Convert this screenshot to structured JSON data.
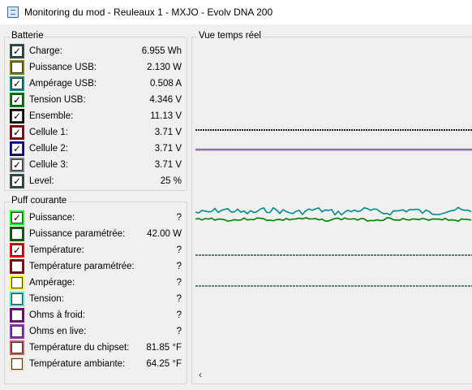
{
  "window": {
    "title": "Monitoring du mod - Reuleaux 1 - MXJO - Evolv DNA 200"
  },
  "batterie": {
    "label": "Batterie",
    "rows": [
      {
        "label": "Charge:",
        "value": "6.955 Wh",
        "checked": true,
        "color": "#2f4f4f"
      },
      {
        "label": "Puissance USB:",
        "value": "2.130 W",
        "checked": false,
        "color": "#808000"
      },
      {
        "label": "Ampérage USB:",
        "value": "0.508 A",
        "checked": true,
        "color": "#008b8b"
      },
      {
        "label": "Tension USB:",
        "value": "4.346 V",
        "checked": true,
        "color": "#008000"
      },
      {
        "label": "Ensemble:",
        "value": "11.13 V",
        "checked": true,
        "color": "#000000"
      },
      {
        "label": "Cellule 1:",
        "value": "3.71 V",
        "checked": true,
        "color": "#8b0000"
      },
      {
        "label": "Cellule 2:",
        "value": "3.71 V",
        "checked": true,
        "color": "#00008b"
      },
      {
        "label": "Cellule 3:",
        "value": "3.71 V",
        "checked": true,
        "color": "#808080"
      },
      {
        "label": "Level:",
        "value": "25 %",
        "checked": true,
        "color": "#2f4f4f"
      }
    ]
  },
  "puff": {
    "label": "Puff courante",
    "rows": [
      {
        "label": "Puissance:",
        "value": "?",
        "checked": true,
        "color": "#00ff00"
      },
      {
        "label": "Puissance paramétrée:",
        "value": "42.00 W",
        "checked": false,
        "color": "#006400"
      },
      {
        "label": "Température:",
        "value": "?",
        "checked": true,
        "color": "#ff0000"
      },
      {
        "label": "Température paramétrée:",
        "value": "?",
        "checked": false,
        "color": "#8b0000"
      },
      {
        "label": "Ampérage:",
        "value": "?",
        "checked": false,
        "color": "#ffff00"
      },
      {
        "label": "Tension:",
        "value": "?",
        "checked": false,
        "color": "#40e0d0"
      },
      {
        "label": "Ohms à froid:",
        "value": "?",
        "checked": false,
        "color": "#800080"
      },
      {
        "label": "Ohms en live:",
        "value": "?",
        "checked": false,
        "color": "#9932cc"
      },
      {
        "label": "Température du chipset:",
        "value": "81.85 °F",
        "checked": false,
        "color": "#cd5c5c"
      },
      {
        "label": "Température ambiante:",
        "value": "64.25 °F",
        "checked": false,
        "color": "#ffdead"
      }
    ]
  },
  "realtime": {
    "label": "Vue temps réel",
    "scroll_left": "‹"
  }
}
